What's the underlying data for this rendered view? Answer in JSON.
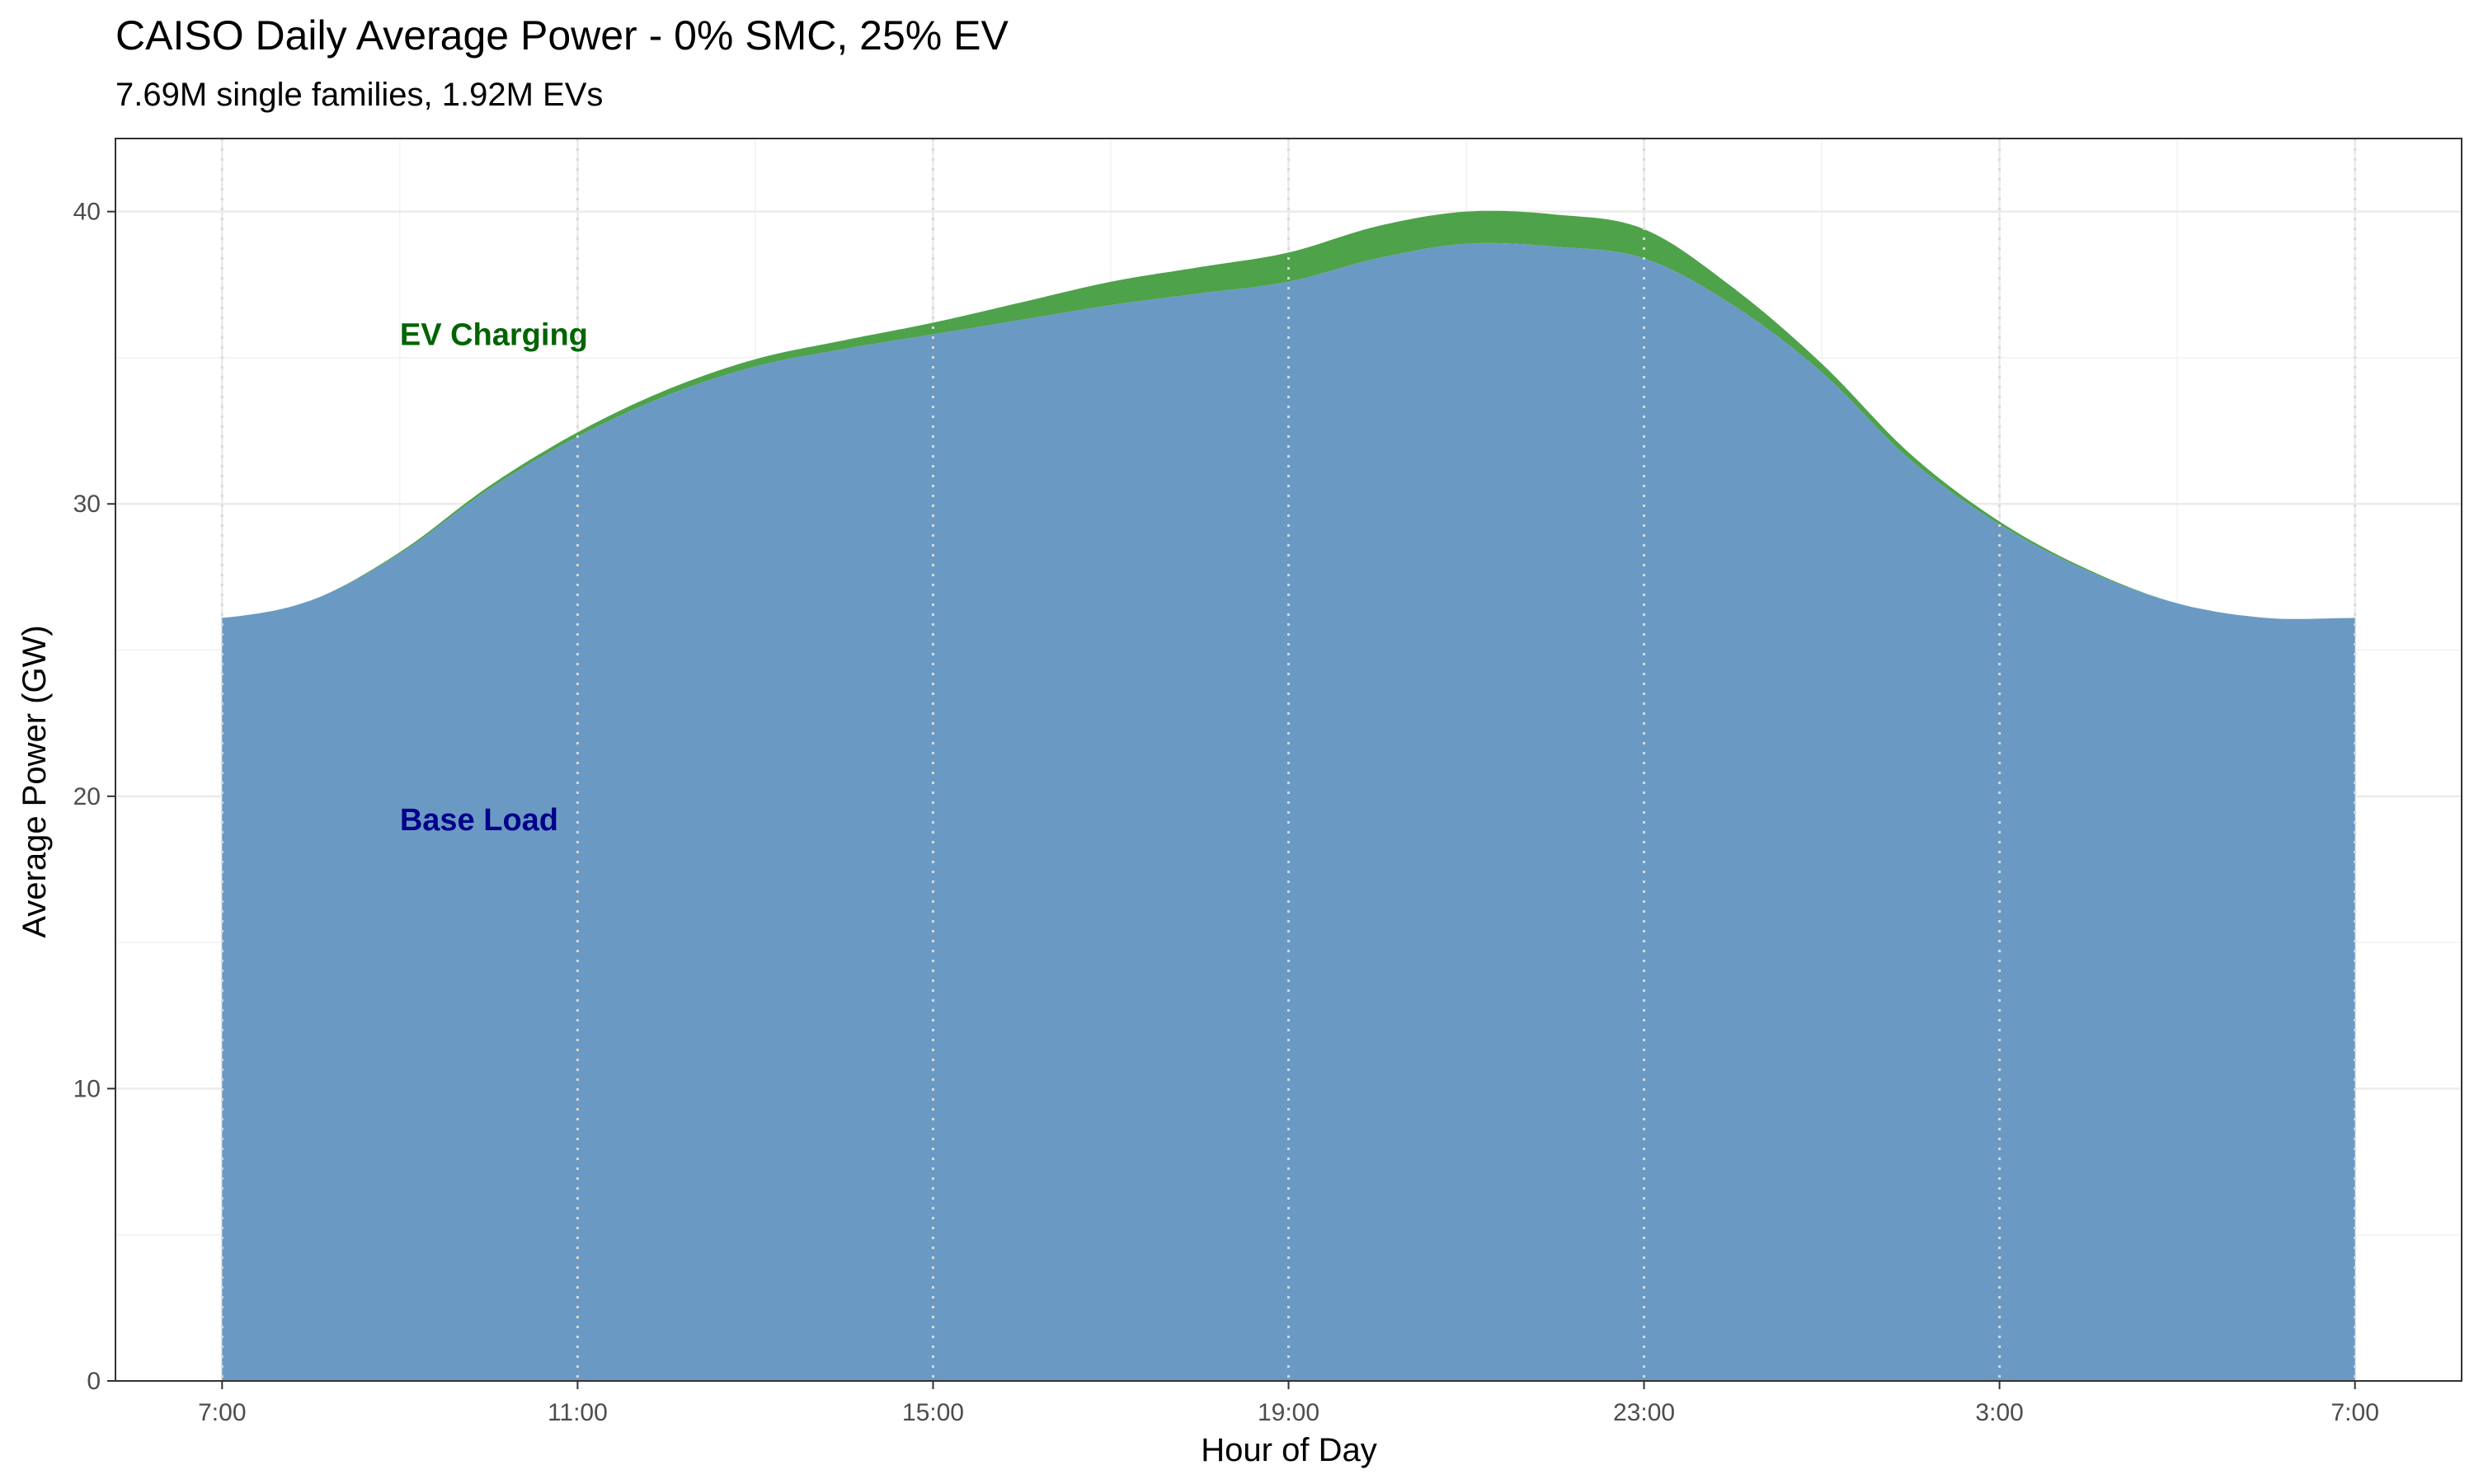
{
  "chart_data": {
    "type": "area",
    "stacked": true,
    "title": "CAISO Daily Average Power - 0% SMC, 25% EV",
    "subtitle": "7.69M single families, 1.92M EVs",
    "xlabel": "Hour of Day",
    "ylabel": "Average Power (GW)",
    "x_ticks": [
      "7:00",
      "11:00",
      "15:00",
      "19:00",
      "23:00",
      "3:00",
      "7:00"
    ],
    "y_ticks": [
      "0",
      "10",
      "20",
      "30",
      "40"
    ],
    "ylim": [
      0,
      42.5
    ],
    "x": [
      0,
      1,
      2,
      3,
      4,
      5,
      6,
      7,
      8,
      9,
      10,
      11,
      12,
      13,
      14,
      15,
      16,
      17,
      18,
      19,
      20,
      21,
      22,
      23,
      24
    ],
    "grid": true,
    "legend": "none",
    "colors": {
      "base": "#6a9ac3",
      "ev": "#4ea24a",
      "ev_label": "#006400",
      "base_label": "#00008b"
    },
    "annotations": [
      {
        "text": "EV Charging",
        "x": 2,
        "y": 35.8,
        "color": "#006400"
      },
      {
        "text": "Base Load",
        "x": 2,
        "y": 19.2,
        "color": "#00008b"
      }
    ],
    "series": [
      {
        "name": "Base Load",
        "values": [
          26.1,
          26.7,
          28.3,
          30.5,
          32.3,
          33.7,
          34.7,
          35.3,
          35.8,
          36.3,
          36.8,
          37.2,
          37.6,
          38.4,
          38.9,
          38.8,
          38.4,
          36.8,
          34.5,
          31.5,
          29.3,
          27.7,
          26.6,
          26.1,
          26.1
        ]
      },
      {
        "name": "EV Charging",
        "values": [
          0.0,
          0.0,
          0.05,
          0.1,
          0.15,
          0.2,
          0.25,
          0.3,
          0.4,
          0.6,
          0.8,
          0.9,
          1.0,
          1.1,
          1.1,
          1.1,
          1.0,
          0.6,
          0.3,
          0.2,
          0.1,
          0.05,
          0.0,
          0.0,
          0.0
        ]
      }
    ]
  }
}
